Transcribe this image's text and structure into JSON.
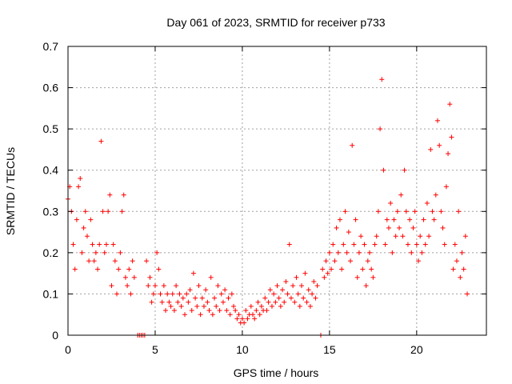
{
  "chart_data": {
    "type": "scatter",
    "title": "Day 061 of 2023, SRMTID for receiver p733",
    "xlabel": "GPS time / hours",
    "ylabel": "SRMTID / TECUs",
    "xlim": [
      0,
      24
    ],
    "ylim": [
      0,
      0.7
    ],
    "x_ticks": [
      0,
      5,
      10,
      15,
      20
    ],
    "x_tick_labels": [
      "0",
      "5",
      "10",
      "15",
      "20"
    ],
    "y_ticks": [
      0,
      0.1,
      0.2,
      0.3,
      0.4,
      0.5,
      0.6,
      0.7
    ],
    "y_tick_labels": [
      "0",
      "0.1",
      "0.2",
      "0.3",
      "0.4",
      "0.5",
      "0.6",
      "0.7"
    ],
    "grid": true,
    "marker": "+",
    "series": [
      {
        "name": "SRMTID",
        "color": "#ff0000",
        "points": [
          [
            0.0,
            0.33
          ],
          [
            0.1,
            0.36
          ],
          [
            0.2,
            0.3
          ],
          [
            0.3,
            0.22
          ],
          [
            0.4,
            0.16
          ],
          [
            0.5,
            0.28
          ],
          [
            0.6,
            0.36
          ],
          [
            0.7,
            0.38
          ],
          [
            0.8,
            0.2
          ],
          [
            0.9,
            0.26
          ],
          [
            1.0,
            0.3
          ],
          [
            1.1,
            0.24
          ],
          [
            1.2,
            0.18
          ],
          [
            1.3,
            0.28
          ],
          [
            1.4,
            0.22
          ],
          [
            1.5,
            0.18
          ],
          [
            1.6,
            0.2
          ],
          [
            1.7,
            0.16
          ],
          [
            1.8,
            0.22
          ],
          [
            1.9,
            0.47
          ],
          [
            2.0,
            0.3
          ],
          [
            2.1,
            0.2
          ],
          [
            2.2,
            0.22
          ],
          [
            2.3,
            0.3
          ],
          [
            2.4,
            0.34
          ],
          [
            2.5,
            0.12
          ],
          [
            2.6,
            0.22
          ],
          [
            2.7,
            0.18
          ],
          [
            2.8,
            0.1
          ],
          [
            2.9,
            0.16
          ],
          [
            3.0,
            0.2
          ],
          [
            3.1,
            0.3
          ],
          [
            3.2,
            0.34
          ],
          [
            3.3,
            0.14
          ],
          [
            3.4,
            0.12
          ],
          [
            3.5,
            0.16
          ],
          [
            3.6,
            0.1
          ],
          [
            3.7,
            0.18
          ],
          [
            3.8,
            0.14
          ],
          [
            4.0,
            0.0
          ],
          [
            4.1,
            0.0
          ],
          [
            4.2,
            0.0
          ],
          [
            4.3,
            0.0
          ],
          [
            4.4,
            0.0
          ],
          [
            4.5,
            0.18
          ],
          [
            4.6,
            0.12
          ],
          [
            4.7,
            0.14
          ],
          [
            4.8,
            0.08
          ],
          [
            4.9,
            0.1
          ],
          [
            5.0,
            0.12
          ],
          [
            5.1,
            0.2
          ],
          [
            5.2,
            0.16
          ],
          [
            5.3,
            0.1
          ],
          [
            5.4,
            0.08
          ],
          [
            5.5,
            0.12
          ],
          [
            5.6,
            0.06
          ],
          [
            5.7,
            0.1
          ],
          [
            5.8,
            0.08
          ],
          [
            5.9,
            0.07
          ],
          [
            6.0,
            0.1
          ],
          [
            6.1,
            0.06
          ],
          [
            6.2,
            0.12
          ],
          [
            6.3,
            0.08
          ],
          [
            6.4,
            0.1
          ],
          [
            6.5,
            0.07
          ],
          [
            6.6,
            0.09
          ],
          [
            6.7,
            0.05
          ],
          [
            6.8,
            0.1
          ],
          [
            6.9,
            0.08
          ],
          [
            7.0,
            0.11
          ],
          [
            7.1,
            0.06
          ],
          [
            7.2,
            0.15
          ],
          [
            7.3,
            0.09
          ],
          [
            7.4,
            0.07
          ],
          [
            7.5,
            0.12
          ],
          [
            7.6,
            0.05
          ],
          [
            7.7,
            0.09
          ],
          [
            7.8,
            0.07
          ],
          [
            7.9,
            0.11
          ],
          [
            8.0,
            0.08
          ],
          [
            8.1,
            0.06
          ],
          [
            8.2,
            0.14
          ],
          [
            8.3,
            0.05
          ],
          [
            8.4,
            0.09
          ],
          [
            8.5,
            0.07
          ],
          [
            8.6,
            0.12
          ],
          [
            8.7,
            0.06
          ],
          [
            8.8,
            0.1
          ],
          [
            8.9,
            0.08
          ],
          [
            9.0,
            0.11
          ],
          [
            9.1,
            0.06
          ],
          [
            9.2,
            0.09
          ],
          [
            9.3,
            0.05
          ],
          [
            9.4,
            0.1
          ],
          [
            9.5,
            0.07
          ],
          [
            9.6,
            0.06
          ],
          [
            9.7,
            0.04
          ],
          [
            9.8,
            0.05
          ],
          [
            9.9,
            0.03
          ],
          [
            10.0,
            0.04
          ],
          [
            10.1,
            0.03
          ],
          [
            10.2,
            0.06
          ],
          [
            10.3,
            0.04
          ],
          [
            10.4,
            0.05
          ],
          [
            10.5,
            0.07
          ],
          [
            10.6,
            0.05
          ],
          [
            10.7,
            0.04
          ],
          [
            10.8,
            0.06
          ],
          [
            10.9,
            0.08
          ],
          [
            11.0,
            0.05
          ],
          [
            11.1,
            0.07
          ],
          [
            11.2,
            0.06
          ],
          [
            11.3,
            0.09
          ],
          [
            11.4,
            0.06
          ],
          [
            11.5,
            0.08
          ],
          [
            11.6,
            0.11
          ],
          [
            11.7,
            0.07
          ],
          [
            11.8,
            0.1
          ],
          [
            11.9,
            0.08
          ],
          [
            12.0,
            0.12
          ],
          [
            12.1,
            0.09
          ],
          [
            12.2,
            0.07
          ],
          [
            12.3,
            0.11
          ],
          [
            12.4,
            0.08
          ],
          [
            12.5,
            0.13
          ],
          [
            12.6,
            0.1
          ],
          [
            12.7,
            0.22
          ],
          [
            12.8,
            0.09
          ],
          [
            12.9,
            0.12
          ],
          [
            13.0,
            0.08
          ],
          [
            13.1,
            0.14
          ],
          [
            13.2,
            0.1
          ],
          [
            13.3,
            0.07
          ],
          [
            13.4,
            0.12
          ],
          [
            13.5,
            0.09
          ],
          [
            13.6,
            0.15
          ],
          [
            13.7,
            0.08
          ],
          [
            13.8,
            0.11
          ],
          [
            13.9,
            0.07
          ],
          [
            14.0,
            0.1
          ],
          [
            14.1,
            0.13
          ],
          [
            14.2,
            0.09
          ],
          [
            14.3,
            0.12
          ],
          [
            14.5,
            0.0
          ],
          [
            14.6,
            0.16
          ],
          [
            14.7,
            0.14
          ],
          [
            14.8,
            0.18
          ],
          [
            14.9,
            0.15
          ],
          [
            15.0,
            0.2
          ],
          [
            15.1,
            0.16
          ],
          [
            15.2,
            0.22
          ],
          [
            15.3,
            0.18
          ],
          [
            15.4,
            0.26
          ],
          [
            15.5,
            0.2
          ],
          [
            15.6,
            0.28
          ],
          [
            15.7,
            0.16
          ],
          [
            15.8,
            0.22
          ],
          [
            15.9,
            0.3
          ],
          [
            16.0,
            0.2
          ],
          [
            16.1,
            0.25
          ],
          [
            16.2,
            0.18
          ],
          [
            16.3,
            0.46
          ],
          [
            16.4,
            0.22
          ],
          [
            16.5,
            0.28
          ],
          [
            16.6,
            0.14
          ],
          [
            16.7,
            0.2
          ],
          [
            16.8,
            0.24
          ],
          [
            16.9,
            0.16
          ],
          [
            17.0,
            0.22
          ],
          [
            17.1,
            0.12
          ],
          [
            17.2,
            0.18
          ],
          [
            17.3,
            0.2
          ],
          [
            17.4,
            0.16
          ],
          [
            17.5,
            0.14
          ],
          [
            17.6,
            0.22
          ],
          [
            17.7,
            0.24
          ],
          [
            17.8,
            0.3
          ],
          [
            17.9,
            0.5
          ],
          [
            18.0,
            0.62
          ],
          [
            18.1,
            0.4
          ],
          [
            18.2,
            0.22
          ],
          [
            18.3,
            0.28
          ],
          [
            18.4,
            0.26
          ],
          [
            18.5,
            0.32
          ],
          [
            18.6,
            0.2
          ],
          [
            18.7,
            0.28
          ],
          [
            18.8,
            0.24
          ],
          [
            18.9,
            0.3
          ],
          [
            19.0,
            0.26
          ],
          [
            19.1,
            0.34
          ],
          [
            19.2,
            0.24
          ],
          [
            19.3,
            0.4
          ],
          [
            19.4,
            0.3
          ],
          [
            19.5,
            0.22
          ],
          [
            19.6,
            0.28
          ],
          [
            19.7,
            0.2
          ],
          [
            19.8,
            0.26
          ],
          [
            19.9,
            0.3
          ],
          [
            20.0,
            0.22
          ],
          [
            20.1,
            0.18
          ],
          [
            20.2,
            0.24
          ],
          [
            20.3,
            0.2
          ],
          [
            20.4,
            0.28
          ],
          [
            20.5,
            0.22
          ],
          [
            20.6,
            0.32
          ],
          [
            20.7,
            0.24
          ],
          [
            20.8,
            0.45
          ],
          [
            20.9,
            0.3
          ],
          [
            21.0,
            0.28
          ],
          [
            21.1,
            0.34
          ],
          [
            21.2,
            0.52
          ],
          [
            21.3,
            0.46
          ],
          [
            21.4,
            0.3
          ],
          [
            21.5,
            0.26
          ],
          [
            21.6,
            0.22
          ],
          [
            21.7,
            0.36
          ],
          [
            21.8,
            0.44
          ],
          [
            21.9,
            0.56
          ],
          [
            22.0,
            0.48
          ],
          [
            22.1,
            0.16
          ],
          [
            22.2,
            0.22
          ],
          [
            22.3,
            0.18
          ],
          [
            22.4,
            0.3
          ],
          [
            22.5,
            0.14
          ],
          [
            22.6,
            0.2
          ],
          [
            22.7,
            0.16
          ],
          [
            22.8,
            0.24
          ],
          [
            22.9,
            0.1
          ]
        ]
      }
    ]
  }
}
